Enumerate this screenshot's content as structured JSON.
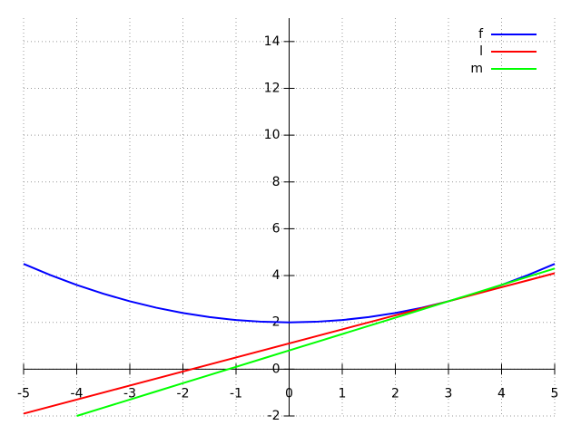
{
  "chart_data": {
    "type": "line",
    "x": [
      -5,
      -4.5,
      -4,
      -3.5,
      -3,
      -2.5,
      -2,
      -1.5,
      -1,
      -0.5,
      0,
      0.5,
      1,
      1.5,
      2,
      2.5,
      3,
      3.5,
      4,
      4.5,
      5
    ],
    "series": [
      {
        "name": "f",
        "color": "#0000ff",
        "values": [
          4.5,
          4.025,
          3.6,
          3.225,
          2.9,
          2.625,
          2.4,
          2.225,
          2.1,
          2.025,
          2,
          2.025,
          2.1,
          2.225,
          2.4,
          2.625,
          2.9,
          3.225,
          3.6,
          4.025,
          4.5
        ]
      },
      {
        "name": "l",
        "color": "#ff0000",
        "values": [
          -1.9,
          -1.6,
          -1.3,
          -1.0,
          -0.7,
          -0.4,
          -0.1,
          0.2,
          0.5,
          0.8,
          1.1,
          1.4,
          1.7,
          2.0,
          2.3,
          2.6,
          2.9,
          3.2,
          3.5,
          3.8,
          4.1
        ]
      },
      {
        "name": "m",
        "color": "#00ff00",
        "values": [
          null,
          null,
          -2.0,
          -1.65,
          -1.3,
          -0.95,
          -0.6,
          -0.25,
          0.1,
          0.45,
          0.8,
          1.15,
          1.5,
          1.85,
          2.2,
          2.55,
          2.9,
          3.25,
          3.6,
          3.95,
          4.3
        ]
      }
    ],
    "xlim": [
      -5,
      5
    ],
    "ylim": [
      -2,
      15
    ],
    "xticks": [
      -5,
      -4,
      -3,
      -2,
      -1,
      0,
      1,
      2,
      3,
      4,
      5
    ],
    "yticks": [
      -2,
      0,
      2,
      4,
      6,
      8,
      10,
      12,
      14
    ],
    "grid": true,
    "legend": "top-right"
  }
}
